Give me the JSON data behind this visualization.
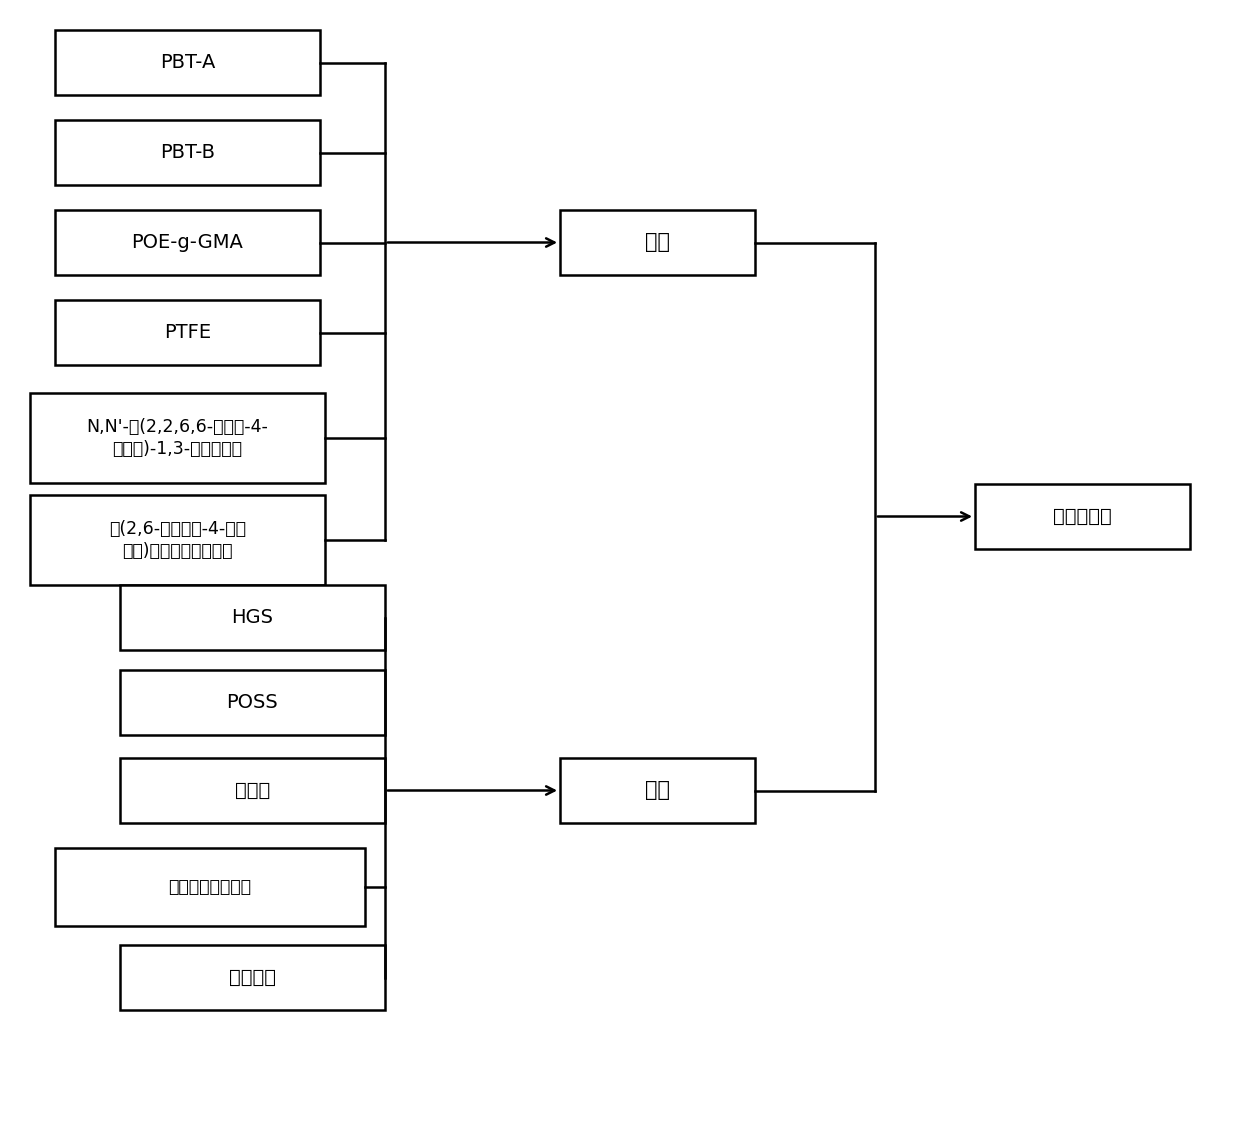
{
  "bg_color": "#ffffff",
  "box_color": "#ffffff",
  "box_edge_color": "#000000",
  "arrow_color": "#000000",
  "group1_inputs": [
    "PBT-A",
    "PBT-B",
    "POE-g-GMA",
    "PTFE",
    "N,N'-双(2,2,6,6-四甲基-4-\n哆啊基)-1,3-苯二甲酰胺",
    "双(2,6-二叔丁基-4-甲基\n苯基)季戊四醇二磷酸酯"
  ],
  "group2_inputs": [
    "HGS",
    "POSS",
    "偶联剂",
    "超支化聚酯聚合物",
    "芜酸酰胺"
  ],
  "mix_label": "混合",
  "output_label": "挤出、造粒"
}
